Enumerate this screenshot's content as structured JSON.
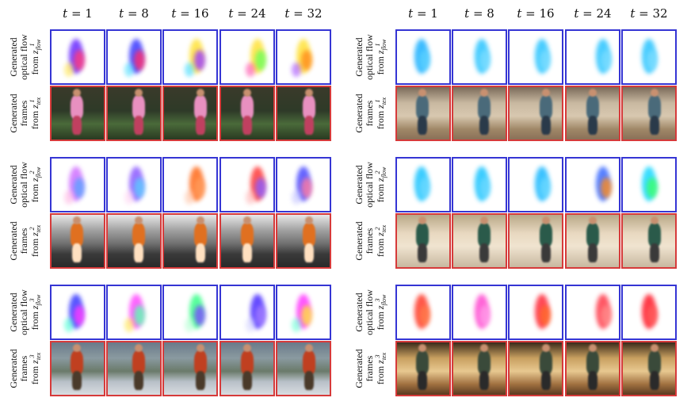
{
  "time_labels": [
    "1",
    "8",
    "16",
    "24",
    "32"
  ],
  "time_prefix": "t = ",
  "row_labels": {
    "flow": {
      "line1": "Generated",
      "line2": "optical flow",
      "line3": "from",
      "sym": "z",
      "sub": "flow"
    },
    "frames": {
      "line1": "Generated",
      "line2": "frames",
      "line3": "from",
      "sym": "z",
      "sub": "tex"
    }
  },
  "superscripts": [
    "1",
    "2",
    "3"
  ],
  "colors": {
    "flow_border": "#3535d4",
    "frame_border": "#d63a3a"
  },
  "panels": [
    {
      "id": "left",
      "scene_types": [
        "indoor-dark",
        "outdoor-street",
        "outdoor-park"
      ]
    },
    {
      "id": "right",
      "scene_types": [
        "indoor-room",
        "indoor-room-beige",
        "indoor-shop"
      ]
    }
  ]
}
